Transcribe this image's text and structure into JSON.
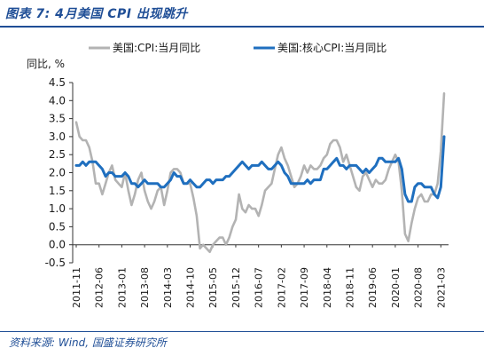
{
  "figure": {
    "title": "图表 7:  4月美国 CPI 出现跳升",
    "source": "资料来源:  Wind, 国盛证券研究所"
  },
  "chart_data": {
    "type": "line",
    "ylabel": "同比, %",
    "ylim": [
      -0.5,
      4.5
    ],
    "yticks": [
      "-0.5",
      "0.0",
      "0.5",
      "1.0",
      "1.5",
      "2.0",
      "2.5",
      "3.0",
      "3.5",
      "4.0",
      "4.5"
    ],
    "xticks": [
      "2011-11",
      "2012-06",
      "2013-01",
      "2013-08",
      "2014-03",
      "2014-10",
      "2015-05",
      "2015-12",
      "2016-07",
      "2017-02",
      "2017-09",
      "2018-04",
      "2018-11",
      "2019-06",
      "2020-01",
      "2020-08",
      "2021-03"
    ],
    "legend_position": "top",
    "grid": false,
    "series": [
      {
        "name": "美国:CPI:当月同比",
        "color": "#b3b3b3",
        "x": [
          "2011-11",
          "2011-12",
          "2012-01",
          "2012-02",
          "2012-03",
          "2012-04",
          "2012-05",
          "2012-06",
          "2012-07",
          "2012-08",
          "2012-09",
          "2012-10",
          "2012-11",
          "2012-12",
          "2013-01",
          "2013-02",
          "2013-03",
          "2013-04",
          "2013-05",
          "2013-06",
          "2013-07",
          "2013-08",
          "2013-09",
          "2013-10",
          "2013-11",
          "2013-12",
          "2014-01",
          "2014-02",
          "2014-03",
          "2014-04",
          "2014-05",
          "2014-06",
          "2014-07",
          "2014-08",
          "2014-09",
          "2014-10",
          "2014-11",
          "2014-12",
          "2015-01",
          "2015-02",
          "2015-03",
          "2015-04",
          "2015-05",
          "2015-06",
          "2015-07",
          "2015-08",
          "2015-09",
          "2015-10",
          "2015-11",
          "2015-12",
          "2016-01",
          "2016-02",
          "2016-03",
          "2016-04",
          "2016-05",
          "2016-06",
          "2016-07",
          "2016-08",
          "2016-09",
          "2016-10",
          "2016-11",
          "2016-12",
          "2017-01",
          "2017-02",
          "2017-03",
          "2017-04",
          "2017-05",
          "2017-06",
          "2017-07",
          "2017-08",
          "2017-09",
          "2017-10",
          "2017-11",
          "2017-12",
          "2018-01",
          "2018-02",
          "2018-03",
          "2018-04",
          "2018-05",
          "2018-06",
          "2018-07",
          "2018-08",
          "2018-09",
          "2018-10",
          "2018-11",
          "2018-12",
          "2019-01",
          "2019-02",
          "2019-03",
          "2019-04",
          "2019-05",
          "2019-06",
          "2019-07",
          "2019-08",
          "2019-09",
          "2019-10",
          "2019-11",
          "2019-12",
          "2020-01",
          "2020-02",
          "2020-03",
          "2020-04",
          "2020-05",
          "2020-06",
          "2020-07",
          "2020-08",
          "2020-09",
          "2020-10",
          "2020-11",
          "2020-12",
          "2021-01",
          "2021-02",
          "2021-03",
          "2021-04"
        ],
        "values": [
          3.4,
          3.0,
          2.9,
          2.9,
          2.7,
          2.3,
          1.7,
          1.7,
          1.4,
          1.7,
          2.0,
          2.2,
          1.8,
          1.7,
          1.6,
          2.0,
          1.5,
          1.1,
          1.4,
          1.8,
          2.0,
          1.5,
          1.2,
          1.0,
          1.2,
          1.5,
          1.6,
          1.1,
          1.5,
          2.0,
          2.1,
          2.1,
          2.0,
          1.7,
          1.7,
          1.7,
          1.3,
          0.8,
          -0.1,
          0.0,
          -0.1,
          -0.2,
          0.0,
          0.1,
          0.2,
          0.2,
          0.0,
          0.2,
          0.5,
          0.7,
          1.4,
          1.0,
          0.9,
          1.1,
          1.0,
          1.0,
          0.8,
          1.1,
          1.5,
          1.6,
          1.7,
          2.1,
          2.5,
          2.7,
          2.4,
          2.2,
          1.9,
          1.6,
          1.7,
          1.9,
          2.2,
          2.0,
          2.2,
          2.1,
          2.1,
          2.2,
          2.4,
          2.5,
          2.8,
          2.9,
          2.9,
          2.7,
          2.3,
          2.5,
          2.2,
          1.9,
          1.6,
          1.5,
          1.9,
          2.0,
          1.8,
          1.6,
          1.8,
          1.7,
          1.7,
          1.8,
          2.1,
          2.3,
          2.5,
          2.3,
          1.5,
          0.3,
          0.1,
          0.6,
          1.0,
          1.3,
          1.4,
          1.2,
          1.2,
          1.4,
          1.4,
          1.7,
          2.6,
          4.2
        ]
      },
      {
        "name": "美国:核心CPI:当月同比",
        "color": "#1f6fbf",
        "x": [
          "2011-11",
          "2011-12",
          "2012-01",
          "2012-02",
          "2012-03",
          "2012-04",
          "2012-05",
          "2012-06",
          "2012-07",
          "2012-08",
          "2012-09",
          "2012-10",
          "2012-11",
          "2012-12",
          "2013-01",
          "2013-02",
          "2013-03",
          "2013-04",
          "2013-05",
          "2013-06",
          "2013-07",
          "2013-08",
          "2013-09",
          "2013-10",
          "2013-11",
          "2013-12",
          "2014-01",
          "2014-02",
          "2014-03",
          "2014-04",
          "2014-05",
          "2014-06",
          "2014-07",
          "2014-08",
          "2014-09",
          "2014-10",
          "2014-11",
          "2014-12",
          "2015-01",
          "2015-02",
          "2015-03",
          "2015-04",
          "2015-05",
          "2015-06",
          "2015-07",
          "2015-08",
          "2015-09",
          "2015-10",
          "2015-11",
          "2015-12",
          "2016-01",
          "2016-02",
          "2016-03",
          "2016-04",
          "2016-05",
          "2016-06",
          "2016-07",
          "2016-08",
          "2016-09",
          "2016-10",
          "2016-11",
          "2016-12",
          "2017-01",
          "2017-02",
          "2017-03",
          "2017-04",
          "2017-05",
          "2017-06",
          "2017-07",
          "2017-08",
          "2017-09",
          "2017-10",
          "2017-11",
          "2017-12",
          "2018-01",
          "2018-02",
          "2018-03",
          "2018-04",
          "2018-05",
          "2018-06",
          "2018-07",
          "2018-08",
          "2018-09",
          "2018-10",
          "2018-11",
          "2018-12",
          "2019-01",
          "2019-02",
          "2019-03",
          "2019-04",
          "2019-05",
          "2019-06",
          "2019-07",
          "2019-08",
          "2019-09",
          "2019-10",
          "2019-11",
          "2019-12",
          "2020-01",
          "2020-02",
          "2020-03",
          "2020-04",
          "2020-05",
          "2020-06",
          "2020-07",
          "2020-08",
          "2020-09",
          "2020-10",
          "2020-11",
          "2020-12",
          "2021-01",
          "2021-02",
          "2021-03",
          "2021-04"
        ],
        "values": [
          2.2,
          2.2,
          2.3,
          2.2,
          2.3,
          2.3,
          2.3,
          2.2,
          2.1,
          1.9,
          2.0,
          2.0,
          1.9,
          1.9,
          1.9,
          2.0,
          1.9,
          1.7,
          1.7,
          1.6,
          1.7,
          1.8,
          1.7,
          1.7,
          1.7,
          1.7,
          1.6,
          1.6,
          1.7,
          1.8,
          2.0,
          1.9,
          1.9,
          1.7,
          1.7,
          1.8,
          1.7,
          1.6,
          1.6,
          1.7,
          1.8,
          1.8,
          1.7,
          1.8,
          1.8,
          1.8,
          1.9,
          1.9,
          2.0,
          2.1,
          2.2,
          2.3,
          2.2,
          2.1,
          2.2,
          2.2,
          2.2,
          2.3,
          2.2,
          2.1,
          2.1,
          2.2,
          2.3,
          2.2,
          2.0,
          1.9,
          1.7,
          1.7,
          1.7,
          1.7,
          1.7,
          1.8,
          1.7,
          1.8,
          1.8,
          1.8,
          2.1,
          2.1,
          2.2,
          2.3,
          2.4,
          2.2,
          2.2,
          2.1,
          2.2,
          2.2,
          2.2,
          2.1,
          2.0,
          2.1,
          2.0,
          2.1,
          2.2,
          2.4,
          2.4,
          2.3,
          2.3,
          2.3,
          2.3,
          2.4,
          2.1,
          1.4,
          1.2,
          1.2,
          1.6,
          1.7,
          1.7,
          1.6,
          1.6,
          1.6,
          1.4,
          1.3,
          1.6,
          3.0
        ]
      }
    ]
  }
}
